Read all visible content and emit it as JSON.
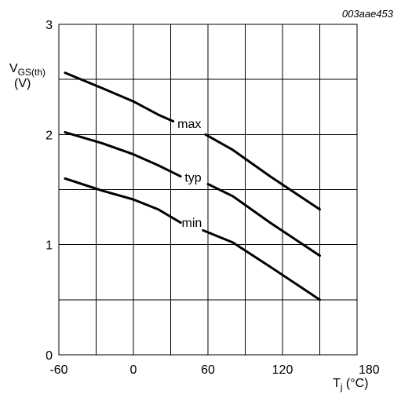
{
  "chart_data": {
    "type": "line",
    "code": "003aae453",
    "xlabel": {
      "main": "T",
      "subscript": "j",
      "unit": " (°C)"
    },
    "ylabel": {
      "main": "V",
      "subscript": "GS(th)",
      "unit": "(V)"
    },
    "xlim": [
      -60,
      180
    ],
    "ylim": [
      0,
      3
    ],
    "x_ticks": [
      -60,
      0,
      60,
      120,
      180
    ],
    "y_ticks": [
      0,
      1,
      2,
      3
    ],
    "x_tick_labels": [
      "-60",
      "0",
      "60",
      "120",
      "180"
    ],
    "y_tick_labels": [
      "0",
      "1",
      "2",
      "3"
    ],
    "x_grid": [
      -60,
      -30,
      0,
      30,
      60,
      90,
      120,
      150,
      180
    ],
    "y_grid": [
      0,
      0.5,
      1,
      1.5,
      2,
      2.5,
      3
    ],
    "grid": true,
    "series": [
      {
        "name": "max",
        "points": [
          [
            -55,
            2.56
          ],
          [
            -25,
            2.42
          ],
          [
            0,
            2.3
          ],
          [
            20,
            2.18
          ],
          [
            32,
            2.12
          ],
          [
            58,
            2.0
          ],
          [
            80,
            1.86
          ],
          [
            110,
            1.62
          ],
          [
            150,
            1.32
          ]
        ],
        "gap": [
          33,
          57
        ],
        "label_x": 45,
        "label_y": 2.06
      },
      {
        "name": "typ",
        "points": [
          [
            -55,
            2.02
          ],
          [
            -25,
            1.92
          ],
          [
            0,
            1.82
          ],
          [
            20,
            1.72
          ],
          [
            38,
            1.62
          ],
          [
            60,
            1.55
          ],
          [
            80,
            1.44
          ],
          [
            110,
            1.2
          ],
          [
            150,
            0.9
          ]
        ],
        "gap": [
          38,
          60
        ],
        "label_x": 48,
        "label_y": 1.57
      },
      {
        "name": "min",
        "points": [
          [
            -55,
            1.6
          ],
          [
            -25,
            1.49
          ],
          [
            0,
            1.41
          ],
          [
            20,
            1.32
          ],
          [
            38,
            1.2
          ],
          [
            56,
            1.13
          ],
          [
            80,
            1.02
          ],
          [
            110,
            0.8
          ],
          [
            150,
            0.5
          ]
        ],
        "gap": [
          38,
          56
        ],
        "label_x": 47,
        "label_y": 1.16
      }
    ]
  }
}
